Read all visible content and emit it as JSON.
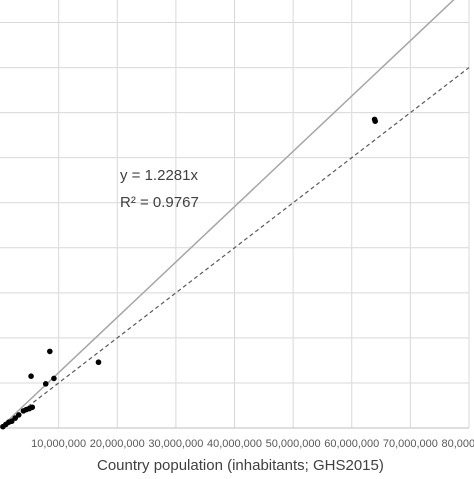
{
  "chart_data": {
    "type": "scatter",
    "xlabel": "Country population (inhabitants; GHS2015)",
    "ylabel": "",
    "xlim": [
      0,
      80000000
    ],
    "ylim": [
      0,
      95000000
    ],
    "grid": true,
    "x_ticks": [
      10000000,
      20000000,
      30000000,
      40000000,
      50000000,
      60000000,
      70000000,
      80000000
    ],
    "x_tick_labels": [
      "10,000,000",
      "20,000,000",
      "30,000,000",
      "40,000,000",
      "50,000,000",
      "60,000,000",
      "70,000,000",
      "80,000,000"
    ],
    "y_gridlines": [
      10000000,
      20000000,
      30000000,
      40000000,
      50000000,
      60000000,
      70000000,
      80000000,
      90000000
    ],
    "trendline": {
      "slope": 1.2281,
      "style": "solid",
      "color": "#a6a6a6"
    },
    "reference_line": {
      "slope": 1.0,
      "style": "dashed",
      "color": "#595959"
    },
    "equation_text": "y = 1.2281x",
    "r2_text": "R² = 0.9767",
    "series": [
      {
        "color": "#000000",
        "points": [
          [
            500000,
            300000
          ],
          [
            1000000,
            800000
          ],
          [
            1500000,
            1300000
          ],
          [
            2000000,
            1500000
          ],
          [
            2600000,
            2200000
          ],
          [
            3200000,
            2900000
          ],
          [
            4000000,
            3800000
          ],
          [
            4500000,
            4100000
          ],
          [
            5000000,
            4300000
          ],
          [
            5500000,
            4600000
          ],
          [
            5300000,
            11500000
          ],
          [
            7800000,
            9800000
          ],
          [
            8500000,
            17000000
          ],
          [
            9200000,
            11000000
          ],
          [
            16800000,
            14600000
          ],
          [
            63900000,
            68500000
          ],
          [
            64000000,
            68100000
          ]
        ]
      }
    ]
  }
}
